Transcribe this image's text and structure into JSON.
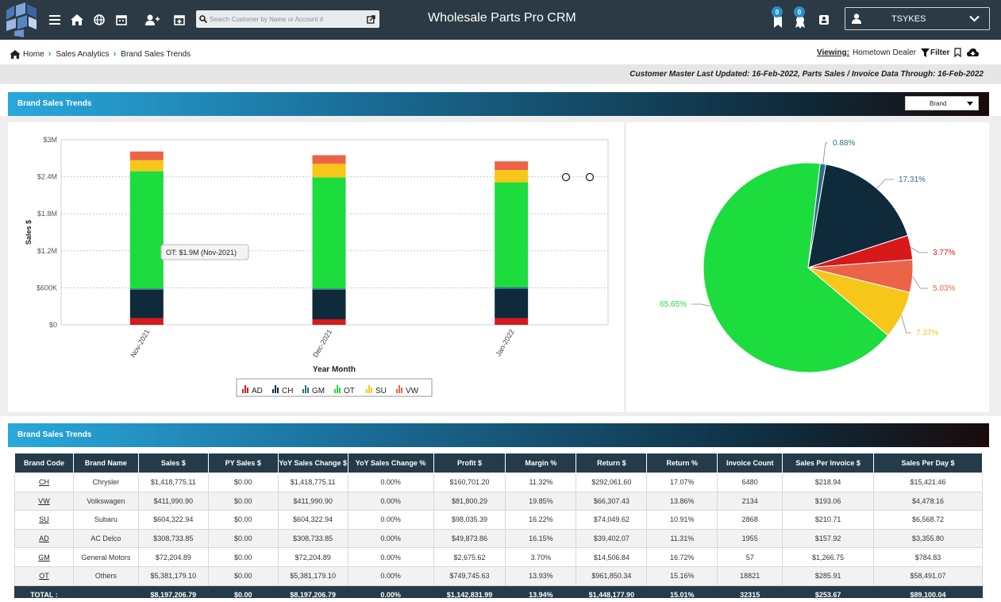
{
  "header": {
    "title": "Wholesale Parts Pro CRM",
    "search_placeholder": "Search Customer by Name or Account #",
    "badge_1": "0",
    "badge_2": "0",
    "username": "TSYKES"
  },
  "breadcrumb": {
    "home": "Home",
    "level2": "Sales Analytics",
    "level3": "Brand Sales Trends"
  },
  "viewing": {
    "label": "Viewing:",
    "value": "Hometown Dealer",
    "filter": "Filter"
  },
  "info_bar": "Customer Master Last Updated: 16-Feb-2022, Parts Sales / Invoice Data Through: 16-Feb-2022",
  "chart_section": {
    "title": "Brand Sales Trends",
    "select_value": "Brand",
    "tooltip": "OT: $1.9M (Nov-2021)"
  },
  "table_section": {
    "title": "Brand Sales Trends"
  },
  "colors": {
    "AD": "#d7191c",
    "CH": "#0e2a3b",
    "GM": "#2e6f86",
    "OT": "#1ddc3e",
    "SU": "#f6c619",
    "VW": "#ec6447",
    "header_bar": "#2b3a45",
    "accent": "#2a8fc9"
  },
  "chart_data": [
    {
      "type": "bar",
      "stacked": true,
      "categories": [
        "Nov-2021",
        "Dec-2021",
        "Jan-2022"
      ],
      "series": [
        {
          "name": "AD",
          "values": [
            0.11,
            0.09,
            0.11
          ]
        },
        {
          "name": "CH",
          "values": [
            0.46,
            0.48,
            0.47
          ]
        },
        {
          "name": "GM",
          "values": [
            0.02,
            0.02,
            0.03
          ]
        },
        {
          "name": "OT",
          "values": [
            1.9,
            1.8,
            1.7
          ]
        },
        {
          "name": "SU",
          "values": [
            0.18,
            0.22,
            0.2
          ]
        },
        {
          "name": "VW",
          "values": [
            0.14,
            0.14,
            0.14
          ]
        }
      ],
      "xlabel": "Year Month",
      "ylabel": "Sales $",
      "ylim": [
        0,
        3
      ],
      "yticks": [
        "$0",
        "$600K",
        "$1.2M",
        "$1.8M",
        "$2.4M",
        "$3M"
      ],
      "legend": [
        "AD",
        "CH",
        "GM",
        "OT",
        "SU",
        "VW"
      ],
      "legend_position": "bottom",
      "grid": true
    },
    {
      "type": "pie",
      "slices": [
        {
          "name": "GM",
          "value": 0.88,
          "label": "0.88%"
        },
        {
          "name": "CH",
          "value": 17.31,
          "label": "17.31%"
        },
        {
          "name": "AD",
          "value": 3.77,
          "label": "3.77%"
        },
        {
          "name": "VW",
          "value": 5.03,
          "label": "5.03%"
        },
        {
          "name": "SU",
          "value": 7.37,
          "label": "7.37%"
        },
        {
          "name": "OT",
          "value": 65.65,
          "label": "65.65%"
        }
      ]
    }
  ],
  "table": {
    "columns": [
      "Brand Code",
      "Brand Name",
      "Sales $",
      "PY Sales $",
      "YoY Sales Change $",
      "YoY Sales Change %",
      "Profit $",
      "Margin %",
      "Return $",
      "Return %",
      "Invoice Count",
      "Sales Per Invoice $",
      "Sales Per Day $"
    ],
    "rows": [
      [
        "CH",
        "Chrysler",
        "$1,418,775.11",
        "$0.00",
        "$1,418,775.11",
        "0.00%",
        "$160,701.20",
        "11.32%",
        "$292,061.60",
        "17.07%",
        "6480",
        "$218.94",
        "$15,421.46"
      ],
      [
        "VW",
        "Volkswagen",
        "$411,990.90",
        "$0.00",
        "$411,990.90",
        "0.00%",
        "$81,800.29",
        "19.85%",
        "$66,307.43",
        "13.86%",
        "2134",
        "$193.06",
        "$4,478.16"
      ],
      [
        "SU",
        "Subaru",
        "$604,322.94",
        "$0.00",
        "$604,322.94",
        "0.00%",
        "$98,035.39",
        "16.22%",
        "$74,049.62",
        "10.91%",
        "2868",
        "$210.71",
        "$6,568.72"
      ],
      [
        "AD",
        "AC Delco",
        "$308,733.85",
        "$0.00",
        "$308,733.85",
        "0.00%",
        "$49,873.86",
        "16.15%",
        "$39,402.07",
        "11.31%",
        "1955",
        "$157.92",
        "$3,355.80"
      ],
      [
        "GM",
        "General Motors",
        "$72,204.89",
        "$0.00",
        "$72,204.89",
        "0.00%",
        "$2,675.62",
        "3.70%",
        "$14,506.84",
        "16.72%",
        "57",
        "$1,266.75",
        "$784.83"
      ],
      [
        "OT",
        "Others",
        "$5,381,179.10",
        "$0.00",
        "$5,381,179.10",
        "0.00%",
        "$749,745.63",
        "13.93%",
        "$961,850.34",
        "15.16%",
        "18821",
        "$285.91",
        "$58,491.07"
      ]
    ],
    "total": [
      "TOTAL :",
      "",
      "$8,197,206.79",
      "$0.00",
      "$8,197,206.79",
      "0.00%",
      "$1,142,831.99",
      "13.94%",
      "$1,448,177.90",
      "15.01%",
      "32315",
      "$253.67",
      "$89,100.04"
    ]
  }
}
